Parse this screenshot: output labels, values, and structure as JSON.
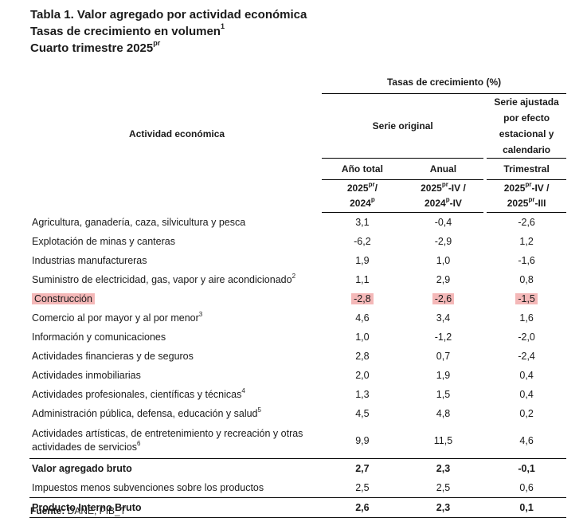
{
  "title": {
    "line1": "Tabla 1. Valor agregado por actividad económica",
    "line2": "Tasas de crecimiento en volumen",
    "line2_sup": "1",
    "line3": "Cuarto trimestre 2025",
    "line3_sup": "pr"
  },
  "header": {
    "activity": "Actividad económica",
    "growth_rates": "Tasas de crecimiento (%)",
    "original_series": "Serie original",
    "adjusted_series": "Serie ajustada por efecto estacional y calendario",
    "col1_label": "Año total",
    "col2_label": "Anual",
    "col3_label": "Trimestral",
    "col1_period_a": "2025",
    "col1_period_a_sup": "pr",
    "col1_period_a_suffix": "/",
    "col1_period_b": "2024",
    "col1_period_b_sup": "p",
    "col2_period_a": "2025",
    "col2_period_a_sup": "pr",
    "col2_period_a_suffix": "-IV /",
    "col2_period_b": "2024",
    "col2_period_b_sup": "p",
    "col2_period_b_suffix": "-IV",
    "col3_period_a": "2025",
    "col3_period_a_sup": "pr",
    "col3_period_a_suffix": "-IV /",
    "col3_period_b": "2025",
    "col3_period_b_sup": "pr",
    "col3_period_b_suffix": "-III"
  },
  "rows": [
    {
      "name": "Agricultura, ganadería, caza, silvicultura y pesca",
      "sup": "",
      "annual_total": "3,1",
      "annual": "-0,4",
      "quarterly": "-2,6"
    },
    {
      "name": "Explotación de minas y canteras",
      "sup": "",
      "annual_total": "-6,2",
      "annual": "-2,9",
      "quarterly": "1,2"
    },
    {
      "name": "Industrias manufactureras",
      "sup": "",
      "annual_total": "1,9",
      "annual": "1,0",
      "quarterly": "-1,6"
    },
    {
      "name": "Suministro de electricidad, gas, vapor y aire acondicionado",
      "sup": "2",
      "annual_total": "1,1",
      "annual": "2,9",
      "quarterly": "0,8"
    },
    {
      "name": "Construcción",
      "sup": "",
      "annual_total": "-2,8",
      "annual": "-2,6",
      "quarterly": "-1,5"
    },
    {
      "name": "Comercio al por mayor y al por menor",
      "sup": "3",
      "annual_total": "4,6",
      "annual": "3,4",
      "quarterly": "1,6"
    },
    {
      "name": "Información y comunicaciones",
      "sup": "",
      "annual_total": "1,0",
      "annual": "-1,2",
      "quarterly": "-2,0"
    },
    {
      "name": "Actividades financieras y de seguros",
      "sup": "",
      "annual_total": "2,8",
      "annual": "0,7",
      "quarterly": "-2,4"
    },
    {
      "name": "Actividades inmobiliarias",
      "sup": "",
      "annual_total": "2,0",
      "annual": "1,9",
      "quarterly": "0,4"
    },
    {
      "name": "Actividades profesionales, científicas y técnicas",
      "sup": "4",
      "annual_total": "1,3",
      "annual": "1,5",
      "quarterly": "0,4"
    },
    {
      "name": "Administración pública, defensa, educación y salud",
      "sup": "5",
      "annual_total": "4,5",
      "annual": "4,8",
      "quarterly": "0,2"
    }
  ],
  "arts_row": {
    "name_line1": "Actividades artísticas, de entretenimiento y recreación y otras",
    "name_line2": "actividades de servicios",
    "sup": "6",
    "annual_total": "9,9",
    "annual": "11,5",
    "quarterly": "4,6"
  },
  "gva_row": {
    "name": "Valor agregado bruto",
    "annual_total": "2,7",
    "annual": "2,3",
    "quarterly": "-0,1"
  },
  "taxes_row": {
    "name": "Impuestos menos subvenciones sobre los productos",
    "annual_total": "2,5",
    "annual": "2,5",
    "quarterly": "0,6"
  },
  "gdp_row": {
    "name": "Producto Interno Bruto",
    "annual_total": "2,6",
    "annual": "2,3",
    "quarterly": "0,1"
  },
  "source": {
    "label": "Fuente:",
    "text": " DANE, PIB_T"
  },
  "colors": {
    "highlight": "#f4b8b8"
  }
}
